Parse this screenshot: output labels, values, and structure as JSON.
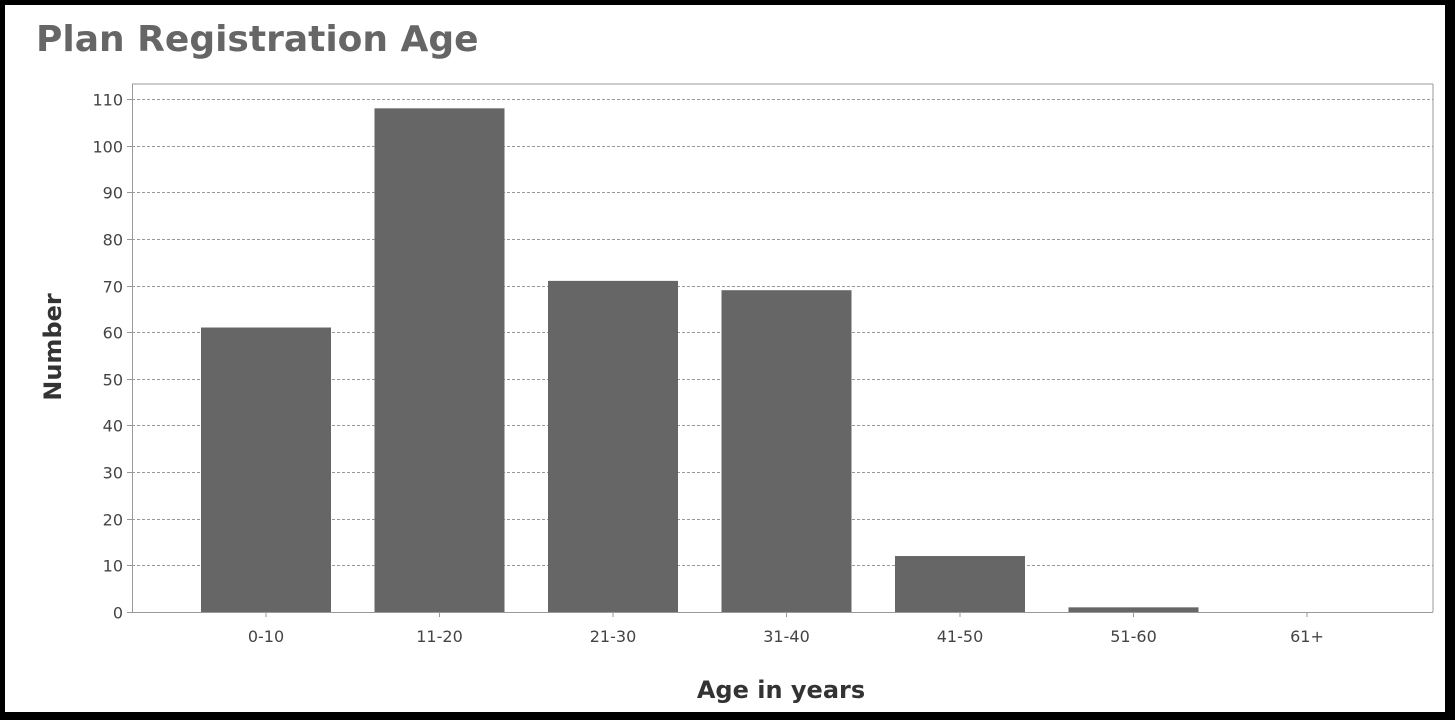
{
  "colors": {
    "bar": "#666666",
    "grid": "#999999",
    "axis": "#999999",
    "title": "#666666"
  },
  "chart_data": {
    "type": "bar",
    "title": "Plan Registration Age",
    "xlabel": "Age in years",
    "ylabel": "Number",
    "categories": [
      "0-10",
      "11-20",
      "21-30",
      "31-40",
      "41-50",
      "51-60",
      "61+"
    ],
    "values": [
      61,
      108,
      71,
      69,
      12,
      1,
      0
    ],
    "ylim": [
      0,
      110
    ],
    "yticks": [
      0,
      10,
      20,
      30,
      40,
      50,
      60,
      70,
      80,
      90,
      100,
      110
    ],
    "grid": true,
    "legend": "none"
  }
}
